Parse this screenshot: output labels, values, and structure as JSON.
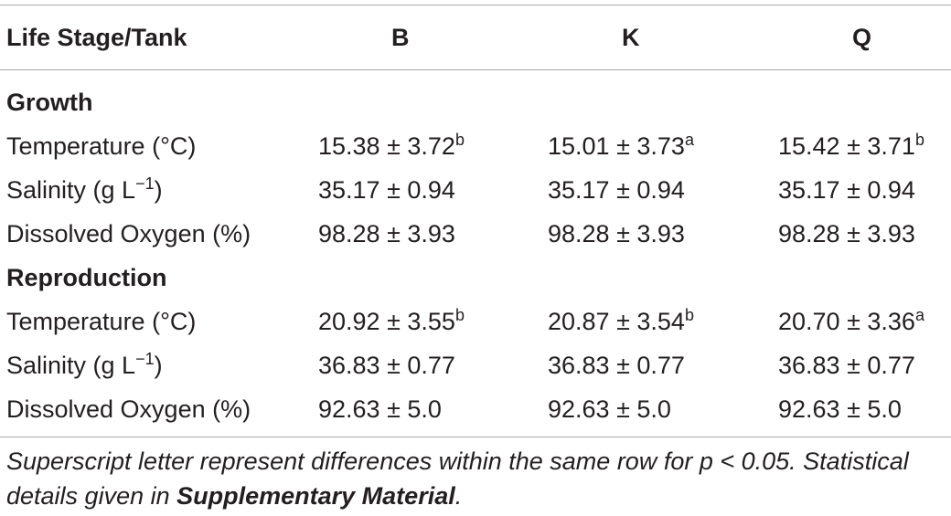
{
  "table": {
    "headers": [
      "Life Stage/Tank",
      "B",
      "K",
      "Q"
    ],
    "sections": [
      {
        "title": "Growth",
        "rows": [
          {
            "label": "Temperature (°C)",
            "label_sup": "",
            "label_tail": "",
            "cells": [
              {
                "v": "15.38 ± 3.72",
                "s": "b"
              },
              {
                "v": "15.01 ± 3.73",
                "s": "a"
              },
              {
                "v": "15.42 ± 3.71",
                "s": "b"
              }
            ]
          },
          {
            "label": "Salinity (g L",
            "label_sup": "−1",
            "label_tail": ")",
            "cells": [
              {
                "v": "35.17 ± 0.94",
                "s": ""
              },
              {
                "v": "35.17 ± 0.94",
                "s": ""
              },
              {
                "v": "35.17 ± 0.94",
                "s": ""
              }
            ]
          },
          {
            "label": "Dissolved Oxygen (%)",
            "label_sup": "",
            "label_tail": "",
            "cells": [
              {
                "v": "98.28 ± 3.93",
                "s": ""
              },
              {
                "v": "98.28 ± 3.93",
                "s": ""
              },
              {
                "v": "98.28 ± 3.93",
                "s": ""
              }
            ]
          }
        ]
      },
      {
        "title": "Reproduction",
        "rows": [
          {
            "label": "Temperature (°C)",
            "label_sup": "",
            "label_tail": "",
            "cells": [
              {
                "v": "20.92 ± 3.55",
                "s": "b"
              },
              {
                "v": "20.87 ± 3.54",
                "s": "b"
              },
              {
                "v": "20.70 ± 3.36",
                "s": "a"
              }
            ]
          },
          {
            "label": "Salinity (g L",
            "label_sup": "−1",
            "label_tail": ")",
            "cells": [
              {
                "v": "36.83 ± 0.77",
                "s": ""
              },
              {
                "v": "36.83 ± 0.77",
                "s": ""
              },
              {
                "v": "36.83 ± 0.77",
                "s": ""
              }
            ]
          },
          {
            "label": "Dissolved Oxygen (%)",
            "label_sup": "",
            "label_tail": "",
            "cells": [
              {
                "v": "92.63 ± 5.0",
                "s": ""
              },
              {
                "v": "92.63 ± 5.0",
                "s": ""
              },
              {
                "v": "92.63 ± 5.0",
                "s": ""
              }
            ]
          }
        ]
      }
    ]
  },
  "footnote": {
    "text": "Superscript letter represent differences within the same row for p < 0.05. Statistical details given in ",
    "bold": "Supplementary Material",
    "tail": "."
  },
  "colors": {
    "text": "#231f20",
    "rule": "#a7a9ac"
  }
}
